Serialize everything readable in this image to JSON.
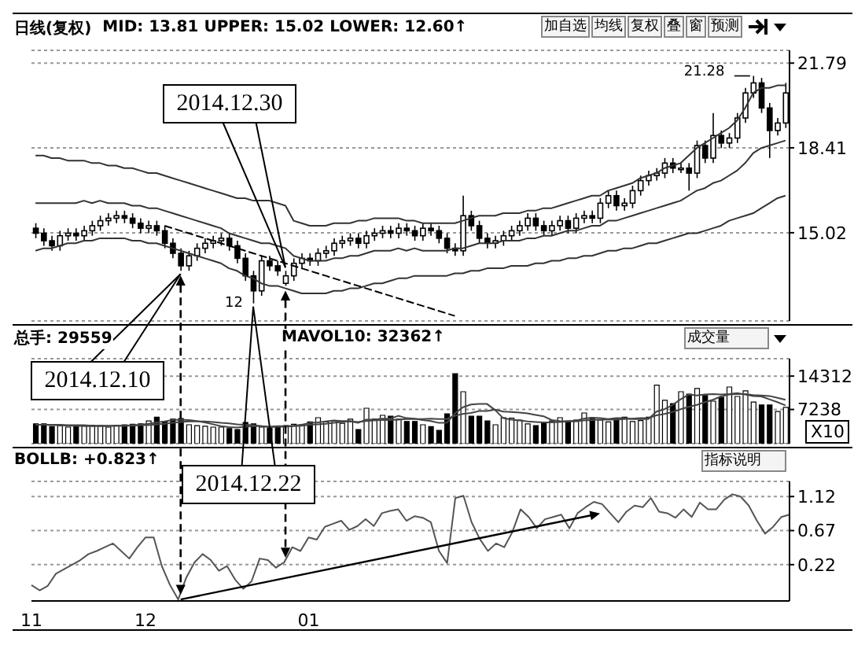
{
  "chart_data": [
    {
      "type": "candlestick",
      "title": "日线(复权)",
      "subtitle": "MID: 13.81 UPPER: 15.02 LOWER: 12.60↑",
      "ohlc": [
        [
          15.2,
          15.4,
          14.8,
          15.0
        ],
        [
          15.0,
          15.2,
          14.5,
          14.7
        ],
        [
          14.7,
          14.9,
          14.3,
          14.5
        ],
        [
          14.5,
          15.1,
          14.3,
          14.9
        ],
        [
          14.9,
          15.2,
          14.7,
          15.0
        ],
        [
          15.0,
          15.2,
          14.7,
          14.9
        ],
        [
          14.9,
          15.3,
          14.7,
          15.1
        ],
        [
          15.1,
          15.5,
          14.9,
          15.3
        ],
        [
          15.3,
          15.7,
          15.1,
          15.5
        ],
        [
          15.5,
          15.8,
          15.3,
          15.6
        ],
        [
          15.6,
          15.9,
          15.4,
          15.7
        ],
        [
          15.7,
          15.9,
          15.4,
          15.6
        ],
        [
          15.6,
          15.8,
          15.2,
          15.4
        ],
        [
          15.4,
          15.6,
          15.0,
          15.2
        ],
        [
          15.2,
          15.5,
          15.0,
          15.3
        ],
        [
          15.3,
          15.5,
          14.9,
          15.1
        ],
        [
          15.1,
          15.3,
          14.4,
          14.6
        ],
        [
          14.6,
          14.8,
          14.0,
          14.2
        ],
        [
          14.2,
          14.4,
          13.5,
          13.7
        ],
        [
          13.7,
          14.3,
          13.5,
          14.1
        ],
        [
          14.1,
          14.6,
          13.9,
          14.4
        ],
        [
          14.4,
          14.8,
          14.2,
          14.6
        ],
        [
          14.6,
          14.9,
          14.4,
          14.7
        ],
        [
          14.7,
          15.0,
          14.5,
          14.8
        ],
        [
          14.8,
          15.0,
          14.3,
          14.5
        ],
        [
          14.5,
          14.7,
          13.8,
          14.0
        ],
        [
          14.0,
          14.2,
          13.1,
          13.3
        ],
        [
          13.3,
          13.5,
          12.2,
          12.7
        ],
        [
          12.7,
          14.1,
          12.5,
          13.9
        ],
        [
          13.9,
          14.1,
          13.5,
          13.7
        ],
        [
          13.7,
          13.9,
          13.3,
          13.5
        ],
        [
          13.0,
          13.5,
          12.9,
          13.3
        ],
        [
          13.3,
          14.0,
          13.1,
          13.8
        ],
        [
          13.8,
          14.2,
          13.6,
          14.0
        ],
        [
          14.0,
          14.2,
          13.7,
          13.9
        ],
        [
          13.9,
          14.4,
          13.7,
          14.2
        ],
        [
          14.2,
          14.5,
          14.0,
          14.3
        ],
        [
          14.3,
          14.8,
          14.1,
          14.6
        ],
        [
          14.6,
          14.9,
          14.4,
          14.7
        ],
        [
          14.7,
          15.0,
          14.5,
          14.8
        ],
        [
          14.8,
          15.0,
          14.4,
          14.6
        ],
        [
          14.6,
          15.1,
          14.4,
          14.9
        ],
        [
          14.9,
          15.2,
          14.7,
          15.0
        ],
        [
          15.0,
          15.3,
          14.8,
          15.1
        ],
        [
          15.1,
          15.3,
          14.8,
          15.0
        ],
        [
          15.0,
          15.4,
          14.8,
          15.2
        ],
        [
          15.2,
          15.4,
          14.9,
          15.1
        ],
        [
          15.1,
          15.3,
          14.7,
          14.9
        ],
        [
          14.9,
          15.4,
          14.7,
          15.2
        ],
        [
          15.2,
          15.4,
          14.9,
          15.1
        ],
        [
          15.1,
          15.3,
          14.6,
          14.8
        ],
        [
          14.8,
          15.0,
          14.2,
          14.4
        ],
        [
          14.4,
          14.6,
          14.1,
          14.3
        ],
        [
          14.3,
          16.5,
          14.1,
          15.7
        ],
        [
          15.7,
          15.9,
          15.1,
          15.3
        ],
        [
          15.3,
          15.5,
          14.6,
          14.8
        ],
        [
          14.8,
          15.0,
          14.4,
          14.6
        ],
        [
          14.6,
          14.9,
          14.4,
          14.7
        ],
        [
          14.7,
          15.1,
          14.5,
          14.9
        ],
        [
          14.9,
          15.3,
          14.7,
          15.1
        ],
        [
          15.1,
          15.5,
          14.9,
          15.3
        ],
        [
          15.3,
          15.8,
          15.1,
          15.6
        ],
        [
          15.6,
          15.8,
          15.1,
          15.3
        ],
        [
          15.3,
          15.5,
          14.9,
          15.1
        ],
        [
          15.1,
          15.5,
          14.9,
          15.3
        ],
        [
          15.3,
          15.7,
          15.1,
          15.5
        ],
        [
          15.5,
          15.7,
          15.0,
          15.2
        ],
        [
          15.2,
          15.8,
          15.0,
          15.6
        ],
        [
          15.6,
          15.9,
          15.4,
          15.7
        ],
        [
          15.7,
          15.9,
          15.4,
          15.6
        ],
        [
          15.6,
          16.4,
          15.4,
          16.2
        ],
        [
          16.2,
          16.7,
          16.0,
          16.5
        ],
        [
          16.5,
          16.7,
          15.9,
          16.1
        ],
        [
          16.1,
          16.4,
          15.9,
          16.2
        ],
        [
          16.2,
          16.9,
          16.0,
          16.7
        ],
        [
          16.7,
          17.3,
          16.5,
          17.1
        ],
        [
          17.1,
          17.5,
          16.9,
          17.3
        ],
        [
          17.3,
          17.6,
          17.1,
          17.4
        ],
        [
          17.4,
          18.0,
          17.2,
          17.8
        ],
        [
          17.8,
          18.0,
          17.4,
          17.6
        ],
        [
          17.6,
          17.8,
          17.4,
          17.6
        ],
        [
          17.6,
          17.8,
          16.7,
          17.4
        ],
        [
          17.4,
          18.7,
          17.2,
          18.5
        ],
        [
          18.5,
          18.7,
          17.8,
          18.0
        ],
        [
          18.0,
          19.8,
          17.8,
          18.9
        ],
        [
          18.9,
          19.1,
          18.4,
          18.6
        ],
        [
          18.6,
          19.0,
          18.4,
          18.8
        ],
        [
          18.8,
          19.8,
          18.6,
          19.6
        ],
        [
          19.6,
          20.8,
          19.4,
          20.6
        ],
        [
          20.6,
          21.28,
          20.4,
          21.0
        ],
        [
          21.0,
          21.2,
          19.8,
          20.0
        ],
        [
          20.0,
          20.2,
          18.0,
          19.1
        ],
        [
          19.1,
          19.6,
          18.9,
          19.4
        ],
        [
          19.4,
          21.0,
          19.2,
          20.6
        ]
      ],
      "series": [
        {
          "type": "line",
          "color": "#333333",
          "values": [
            18.1,
            18.1,
            18.0,
            18.0,
            17.9,
            17.9,
            17.9,
            17.8,
            17.8,
            17.7,
            17.7,
            17.6,
            17.6,
            17.5,
            17.4,
            17.4,
            17.3,
            17.2,
            17.1,
            17.0,
            16.9,
            16.8,
            16.7,
            16.6,
            16.5,
            16.4,
            16.4,
            16.3,
            16.3,
            16.3,
            16.2,
            16.1,
            15.5,
            15.4,
            15.3,
            15.3,
            15.3,
            15.4,
            15.4,
            15.4,
            15.5,
            15.5,
            15.6,
            15.6,
            15.6,
            15.6,
            15.5,
            15.5,
            15.4,
            15.4,
            15.4,
            15.4,
            15.4,
            15.5,
            15.6,
            15.7,
            15.7,
            15.7,
            15.8,
            15.8,
            15.8,
            15.9,
            15.9,
            16.0,
            16.0,
            16.1,
            16.2,
            16.3,
            16.4,
            16.5,
            16.5,
            16.7,
            16.8,
            16.9,
            17.0,
            17.2,
            17.3,
            17.4,
            17.6,
            17.7,
            17.8,
            18.1,
            18.4,
            18.6,
            18.8,
            19.0,
            19.2,
            19.5,
            20.0,
            20.6,
            20.8,
            20.8,
            20.9,
            20.9
          ]
        },
        {
          "type": "line",
          "color": "#333333",
          "values": [
            16.2,
            16.2,
            16.2,
            16.2,
            16.2,
            16.2,
            16.3,
            16.2,
            16.3,
            16.2,
            16.2,
            16.2,
            16.1,
            16.1,
            16.0,
            16.0,
            15.9,
            15.8,
            15.7,
            15.6,
            15.5,
            15.4,
            15.3,
            15.2,
            15.0,
            14.9,
            14.8,
            14.7,
            14.6,
            14.6,
            14.5,
            14.4,
            14.1,
            14.0,
            13.9,
            13.9,
            13.9,
            14.0,
            14.0,
            14.1,
            14.1,
            14.2,
            14.3,
            14.3,
            14.3,
            14.4,
            14.3,
            14.4,
            14.3,
            14.3,
            14.3,
            14.3,
            14.4,
            14.4,
            14.5,
            14.6,
            14.6,
            14.6,
            14.7,
            14.7,
            14.7,
            14.8,
            14.8,
            14.9,
            14.9,
            15.0,
            15.1,
            15.1,
            15.2,
            15.3,
            15.3,
            15.5,
            15.5,
            15.6,
            15.7,
            15.8,
            15.9,
            16.0,
            16.1,
            16.2,
            16.3,
            16.5,
            16.7,
            16.8,
            17.0,
            17.1,
            17.3,
            17.5,
            17.8,
            18.2,
            18.4,
            18.5,
            18.6,
            18.7
          ]
        },
        {
          "type": "line",
          "color": "#333333",
          "values": [
            14.3,
            14.4,
            14.4,
            14.5,
            14.6,
            14.6,
            14.7,
            14.7,
            14.8,
            14.8,
            14.8,
            14.8,
            14.7,
            14.7,
            14.6,
            14.6,
            14.5,
            14.4,
            14.3,
            14.2,
            14.1,
            14.0,
            13.9,
            13.8,
            13.6,
            13.5,
            13.3,
            13.2,
            13.0,
            12.9,
            12.9,
            12.8,
            12.7,
            12.6,
            12.6,
            12.6,
            12.6,
            12.7,
            12.7,
            12.8,
            12.8,
            12.9,
            13.0,
            13.0,
            13.1,
            13.2,
            13.2,
            13.3,
            13.3,
            13.3,
            13.3,
            13.3,
            13.4,
            13.4,
            13.5,
            13.5,
            13.6,
            13.6,
            13.6,
            13.7,
            13.7,
            13.7,
            13.8,
            13.8,
            13.9,
            13.9,
            14.0,
            14.0,
            14.1,
            14.1,
            14.2,
            14.3,
            14.3,
            14.4,
            14.4,
            14.5,
            14.6,
            14.6,
            14.7,
            14.8,
            14.9,
            15.0,
            15.0,
            15.1,
            15.2,
            15.3,
            15.5,
            15.6,
            15.7,
            15.8,
            16.0,
            16.2,
            16.4,
            16.5
          ]
        },
        {
          "type": "line",
          "color": "#000000",
          "line_style": "dashed",
          "values": [
            null,
            null,
            null,
            null,
            null,
            null,
            null,
            null,
            null,
            null,
            null,
            null,
            null,
            null,
            null,
            null,
            15.3,
            15.2,
            15.1,
            15.0,
            14.9,
            14.8,
            14.7,
            14.6,
            14.5,
            14.4,
            14.3,
            14.2,
            14.1,
            14.0,
            13.9,
            13.8,
            13.7,
            13.6,
            13.5,
            13.4,
            13.3,
            13.2,
            13.1,
            13.0,
            12.9,
            12.8,
            12.7,
            12.6,
            12.5,
            12.4,
            12.3,
            12.2,
            12.1,
            12.0,
            11.9,
            11.8,
            11.7,
            null,
            null,
            null,
            null,
            null,
            null,
            null,
            null,
            null,
            null,
            null,
            null,
            null,
            null,
            null,
            null,
            null,
            null,
            null,
            null,
            null,
            null,
            null,
            null,
            null,
            null,
            null,
            null,
            null,
            null,
            null,
            null,
            null,
            null,
            null,
            null,
            null,
            null,
            null,
            null,
            null
          ]
        }
      ],
      "ylim": [
        11.5,
        22.3
      ],
      "yticks": [
        15.02,
        18.41,
        21.79
      ],
      "grid": "y",
      "tick_labels": "y",
      "annotations": [
        "2014.12.30",
        "2014.12.10",
        "2014.12.22",
        "21.28",
        "12",
        "加自选",
        "均线",
        "复权",
        "叠",
        "窗",
        "预测"
      ]
    },
    {
      "type": "bar",
      "title": "总手: 29559",
      "subtitle": "MAVOL10: 32362↑",
      "ylabel": "X10",
      "values": [
        4200,
        4200,
        3600,
        3800,
        3500,
        3700,
        3800,
        3900,
        3800,
        3500,
        3900,
        4000,
        4100,
        4200,
        4800,
        5600,
        4700,
        5200,
        5300,
        4000,
        3800,
        3700,
        3500,
        3500,
        3200,
        3000,
        4500,
        4200,
        3500,
        3300,
        3500,
        3800,
        4100,
        4000,
        4600,
        5500,
        4600,
        4800,
        4300,
        5200,
        3000,
        7500,
        5200,
        6000,
        5800,
        5200,
        4700,
        4700,
        4000,
        3600,
        2800,
        6300,
        14800,
        11000,
        5800,
        5800,
        4800,
        4000,
        5500,
        5400,
        5000,
        4200,
        3800,
        4500,
        4800,
        5500,
        4800,
        5000,
        6500,
        5500,
        5000,
        4600,
        5200,
        5600,
        4700,
        4900,
        5600,
        12400,
        9200,
        8500,
        11000,
        10500,
        11700,
        10200,
        9000,
        9800,
        12000,
        10000,
        11200,
        8800,
        8200,
        8200,
        6800,
        7700
      ],
      "colors": [
        "#000000",
        "#000000",
        "#000000",
        "#ffffff",
        "#ffffff",
        "#000000",
        "#ffffff",
        "#ffffff",
        "#ffffff",
        "#ffffff",
        "#ffffff",
        "#000000",
        "#000000",
        "#000000",
        "#ffffff",
        "#000000",
        "#000000",
        "#000000",
        "#000000",
        "#ffffff",
        "#ffffff",
        "#ffffff",
        "#ffffff",
        "#ffffff",
        "#000000",
        "#000000",
        "#000000",
        "#000000",
        "#ffffff",
        "#000000",
        "#000000",
        "#ffffff",
        "#ffffff",
        "#ffffff",
        "#000000",
        "#ffffff",
        "#ffffff",
        "#ffffff",
        "#ffffff",
        "#ffffff",
        "#000000",
        "#ffffff",
        "#ffffff",
        "#ffffff",
        "#000000",
        "#ffffff",
        "#000000",
        "#000000",
        "#ffffff",
        "#000000",
        "#000000",
        "#000000",
        "#000000",
        "#ffffff",
        "#000000",
        "#000000",
        "#000000",
        "#ffffff",
        "#ffffff",
        "#ffffff",
        "#ffffff",
        "#ffffff",
        "#000000",
        "#000000",
        "#ffffff",
        "#ffffff",
        "#000000",
        "#ffffff",
        "#ffffff",
        "#000000",
        "#ffffff",
        "#ffffff",
        "#000000",
        "#ffffff",
        "#ffffff",
        "#ffffff",
        "#ffffff",
        "#ffffff",
        "#ffffff",
        "#000000",
        "#ffffff",
        "#000000",
        "#ffffff",
        "#000000",
        "#ffffff",
        "#000000",
        "#ffffff",
        "#ffffff",
        "#ffffff",
        "#ffffff",
        "#000000",
        "#000000",
        "#ffffff",
        "#ffffff"
      ],
      "series": [
        {
          "type": "line",
          "color": "#444444",
          "values": [
            4000,
            4000,
            3900,
            3900,
            3800,
            3800,
            3700,
            3700,
            3700,
            3700,
            3800,
            3800,
            3900,
            4000,
            4200,
            4500,
            4700,
            5000,
            5100,
            5000,
            4800,
            4500,
            4100,
            3700,
            3500,
            3400,
            3600,
            3700,
            3700,
            3600,
            3700,
            3700,
            3800,
            4000,
            4400,
            4500,
            4700,
            4900,
            4800,
            4800,
            4400,
            5100,
            5100,
            5300,
            5300,
            5900,
            5400,
            5300,
            5000,
            4800,
            4400,
            4400,
            6400,
            7700,
            8300,
            8400,
            8400,
            7100,
            5400,
            5100,
            4900,
            4700,
            4600,
            4500,
            4500,
            4600,
            4700,
            4900,
            5300,
            5500,
            5400,
            5200,
            5400,
            5400,
            5200,
            5200,
            5200,
            6800,
            7300,
            8200,
            9400,
            10400,
            10200,
            10400,
            10500,
            10400,
            10500,
            10700,
            10400,
            10100,
            10000,
            9400,
            8800,
            8100
          ]
        },
        {
          "type": "line",
          "color": "#444444",
          "values": [
            4000,
            4000,
            4000,
            4000,
            3900,
            3900,
            3900,
            3800,
            3800,
            3800,
            3800,
            3800,
            3800,
            3900,
            3900,
            4100,
            4200,
            4400,
            4600,
            4700,
            4700,
            4700,
            4600,
            4400,
            4300,
            4100,
            4000,
            3900,
            3700,
            3500,
            3600,
            3600,
            3700,
            3800,
            4000,
            4100,
            4200,
            4400,
            4600,
            4700,
            4600,
            4800,
            4900,
            5000,
            5000,
            5100,
            5200,
            5200,
            5200,
            5300,
            5200,
            5200,
            5900,
            6300,
            6500,
            6900,
            6900,
            7200,
            6800,
            6700,
            6600,
            6400,
            6100,
            5800,
            5000,
            4800,
            4700,
            4700,
            4900,
            5000,
            5100,
            5100,
            5100,
            5200,
            5300,
            5400,
            5400,
            6000,
            6300,
            6700,
            7300,
            7800,
            8200,
            8800,
            9300,
            10000,
            10400,
            10500,
            10500,
            10300,
            10200,
            10100,
            9700,
            9300
          ]
        }
      ],
      "ylim": [
        0,
        18000
      ],
      "yticks": [
        7238,
        14312
      ],
      "grid": "y",
      "tick_labels": "y",
      "annotations": [
        "成交量"
      ]
    },
    {
      "type": "line",
      "title": "BOLLB: +0.823↑",
      "color": "#555555",
      "categories": [
        "11",
        null,
        null,
        null,
        null,
        null,
        null,
        null,
        null,
        null,
        null,
        null,
        null,
        null,
        "12",
        null,
        null,
        null,
        null,
        null,
        null,
        null,
        null,
        null,
        null,
        null,
        null,
        null,
        null,
        null,
        null,
        null,
        null,
        null,
        "01",
        null,
        null,
        null,
        null,
        null,
        null,
        null,
        null,
        null,
        null,
        null,
        null,
        null,
        null,
        null,
        null,
        null,
        null,
        null,
        null,
        null,
        null,
        null,
        null,
        null,
        null,
        null,
        null,
        null,
        null,
        null,
        null,
        null,
        null,
        null,
        null,
        null,
        null,
        null,
        null,
        null,
        null,
        null,
        null,
        null,
        null,
        null,
        null,
        null,
        null,
        null,
        null,
        null,
        null,
        null,
        null,
        null,
        null,
        null
      ],
      "values": [
        -0.05,
        -0.12,
        -0.06,
        0.1,
        0.16,
        0.22,
        0.28,
        0.36,
        0.4,
        0.45,
        0.5,
        0.4,
        0.3,
        0.45,
        0.58,
        0.58,
        0.2,
        -0.05,
        -0.24,
        0.05,
        0.25,
        0.36,
        0.28,
        0.14,
        0.2,
        0.02,
        -0.1,
        0.0,
        0.3,
        0.28,
        0.18,
        0.25,
        0.45,
        0.4,
        0.58,
        0.55,
        0.72,
        0.76,
        0.8,
        0.68,
        0.73,
        0.82,
        0.73,
        0.9,
        0.93,
        0.95,
        0.8,
        0.86,
        0.84,
        0.78,
        0.4,
        0.24,
        1.1,
        1.13,
        0.78,
        0.56,
        0.4,
        0.5,
        0.45,
        0.65,
        0.95,
        0.85,
        0.7,
        0.82,
        0.85,
        0.88,
        0.7,
        0.9,
        0.98,
        1.05,
        1.02,
        0.9,
        0.78,
        0.92,
        1.0,
        0.98,
        1.1,
        0.92,
        0.9,
        0.84,
        0.95,
        0.85,
        1.04,
        0.95,
        0.95,
        1.08,
        1.15,
        1.12,
        1.0,
        0.8,
        0.63,
        0.72,
        0.85,
        0.88
      ],
      "ylim": [
        -0.26,
        1.32
      ],
      "yticks": [
        0.22,
        0.67,
        1.12
      ],
      "grid": "y",
      "annotations": [
        "指标说明"
      ]
    }
  ]
}
